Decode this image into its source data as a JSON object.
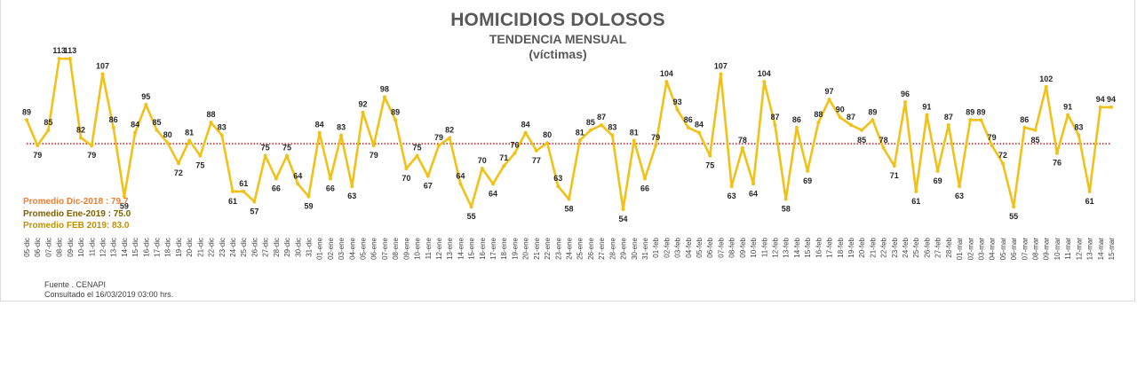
{
  "colors": {
    "line": "#f2c118",
    "avg_line": "#c00000",
    "avg_dic": "#ed7d31",
    "avg_ene": "#7f6000",
    "avg_feb": "#bf9000"
  },
  "chart_data": {
    "type": "line",
    "title": "HOMICIDIOS DOLOSOS",
    "subtitle": "TENDENCIA MENSUAL",
    "unit_label": "(víctimas)",
    "grid": false,
    "ylim": [
      45,
      120
    ],
    "x": [
      "05-dic",
      "06-dic",
      "07-dic",
      "08-dic",
      "09-dic",
      "10-dic",
      "11-dic",
      "12-dic",
      "13-dic",
      "14-dic",
      "15-dic",
      "16-dic",
      "17-dic",
      "18-dic",
      "19-dic",
      "20-dic",
      "21-dic",
      "22-dic",
      "23-dic",
      "24-dic",
      "25-dic",
      "26-dic",
      "27-dic",
      "28-dic",
      "29-dic",
      "30-dic",
      "31-dic",
      "01-ene",
      "02-ene",
      "03-ene",
      "04-ene",
      "05-ene",
      "06-ene",
      "07-ene",
      "08-ene",
      "09-ene",
      "10-ene",
      "11-ene",
      "12-ene",
      "13-ene",
      "14-ene",
      "15-ene",
      "16-ene",
      "17-ene",
      "18-ene",
      "19-ene",
      "20-ene",
      "21-ene",
      "22-ene",
      "23-ene",
      "24-ene",
      "25-ene",
      "26-ene",
      "27-ene",
      "28-ene",
      "29-ene",
      "30-ene",
      "31-ene",
      "01-feb",
      "02-feb",
      "03-feb",
      "04-feb",
      "05-feb",
      "06-feb",
      "07-feb",
      "08-feb",
      "09-feb",
      "10-feb",
      "11-feb",
      "12-feb",
      "13-feb",
      "14-feb",
      "15-feb",
      "16-feb",
      "17-feb",
      "18-feb",
      "19-feb",
      "20-feb",
      "21-feb",
      "22-feb",
      "23-feb",
      "24-feb",
      "25-feb",
      "26-feb",
      "27-feb",
      "28-feb",
      "01-mar",
      "02-mar",
      "03-mar",
      "04-mar",
      "05-mar",
      "06-mar",
      "07-mar",
      "08-mar",
      "09-mar",
      "10-mar",
      "11-mar",
      "12-mar",
      "13-mar",
      "14-mar",
      "15-mar"
    ],
    "series": [
      {
        "values": [
          89,
          79,
          85,
          113,
          113,
          82,
          79,
          107,
          86,
          59,
          84,
          95,
          85,
          80,
          72,
          81,
          75,
          88,
          83,
          61,
          61,
          57,
          75,
          66,
          75,
          64,
          59,
          84,
          66,
          83,
          63,
          92,
          79,
          98,
          89,
          70,
          75,
          67,
          79,
          82,
          64,
          55,
          70,
          64,
          71,
          76,
          84,
          77,
          80,
          63,
          58,
          81,
          85,
          87,
          83,
          54,
          81,
          66,
          79,
          104,
          93,
          86,
          84,
          75,
          107,
          63,
          78,
          64,
          104,
          87,
          58,
          86,
          69,
          88,
          97,
          90,
          87,
          85,
          89,
          78,
          71,
          96,
          61,
          91,
          69,
          87,
          63,
          89,
          89,
          79,
          72,
          55,
          86,
          85,
          102,
          76,
          91,
          83,
          61,
          94,
          94
        ]
      }
    ],
    "reference_line": 79.7,
    "annotations": [
      "Promedio Dic-2018 : 79.7",
      "Promedio Ene-2019 : 75.0",
      "Promedio FEB 2019:  83.0"
    ]
  },
  "footer": {
    "source": "Fuente . CENAPI",
    "consulted": "Consultado el 16/03/2019  03:00 hrs."
  }
}
